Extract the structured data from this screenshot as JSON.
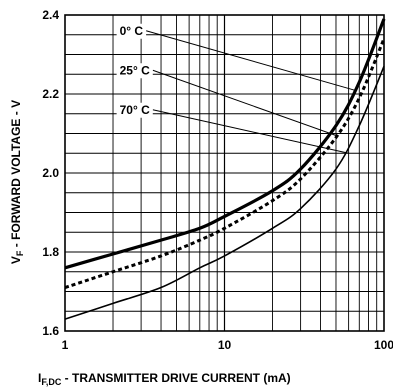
{
  "chart_data": {
    "type": "line",
    "title": "",
    "xlabel": {
      "symbol": "I",
      "subscript": "F,DC",
      "text": " - TRANSMITTER DRIVE CURRENT (mA)"
    },
    "ylabel": {
      "symbol": "V",
      "subscript": "F",
      "text": " - FORWARD VOLTAGE - V"
    },
    "x_scale": "log",
    "xlim": [
      1,
      100
    ],
    "ylim": [
      1.6,
      2.4
    ],
    "x_ticks": [
      1,
      10,
      100
    ],
    "x_tick_labels": [
      "1",
      "10",
      "100"
    ],
    "y_ticks": [
      1.6,
      1.8,
      2.0,
      2.2,
      2.4
    ],
    "y_tick_labels": [
      "1.6",
      "1.8",
      "2.0",
      "2.2",
      "2.4"
    ],
    "grid": true,
    "series": [
      {
        "name": "0° C",
        "style": "thick-solid",
        "x": [
          1,
          2,
          4,
          7,
          10,
          20,
          30,
          50,
          70,
          100
        ],
        "y": [
          1.76,
          1.795,
          1.83,
          1.86,
          1.89,
          1.955,
          2.01,
          2.12,
          2.23,
          2.39
        ]
      },
      {
        "name": "25° C",
        "style": "dotted",
        "x": [
          1,
          2,
          4,
          7,
          10,
          20,
          30,
          50,
          70,
          100
        ],
        "y": [
          1.71,
          1.75,
          1.79,
          1.83,
          1.86,
          1.93,
          1.985,
          2.09,
          2.19,
          2.34
        ]
      },
      {
        "name": "70° C",
        "style": "thin-solid",
        "x": [
          1,
          2,
          4,
          7,
          10,
          20,
          30,
          50,
          70,
          100
        ],
        "y": [
          1.63,
          1.67,
          1.71,
          1.76,
          1.79,
          1.86,
          1.91,
          2.01,
          2.12,
          2.27
        ]
      }
    ],
    "annotations": [
      {
        "text": "0° C",
        "label_x": 2.2,
        "label_y": 2.35,
        "pointer_x": 65,
        "pointer_y": 2.21
      },
      {
        "text": "25° C",
        "label_x": 2.2,
        "label_y": 2.25,
        "pointer_x": 50,
        "pointer_y": 2.095
      },
      {
        "text": "70° C",
        "label_x": 2.2,
        "label_y": 2.15,
        "pointer_x": 60,
        "pointer_y": 2.05
      }
    ]
  }
}
